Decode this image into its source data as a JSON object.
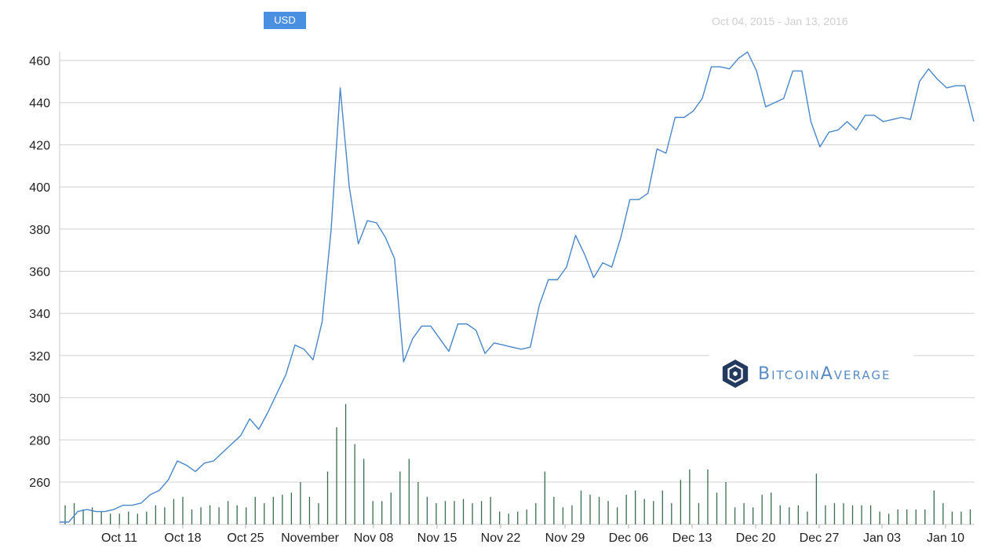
{
  "header": {
    "currency_button": "USD",
    "date_range": "Oct 04, 2015 - Jan 13, 2016"
  },
  "watermark": {
    "brand_text": "BitcoinAverage",
    "logo_icon": "bitcoinaverage-hexagon-logo-icon",
    "logo_color": "#233a5e"
  },
  "chart_data": {
    "type": "line",
    "ylim": [
      240,
      465
    ],
    "y_ticks": [
      460,
      440,
      420,
      400,
      380,
      360,
      340,
      320,
      300,
      280,
      260
    ],
    "x_ticks": [
      "Oct 11",
      "Oct 18",
      "Oct 25",
      "November",
      "Nov 08",
      "Nov 15",
      "Nov 22",
      "Nov 29",
      "Dec 06",
      "Dec 13",
      "Dec 20",
      "Dec 27",
      "Jan 03",
      "Jan 10"
    ],
    "x_start": "Oct 04, 2015",
    "x_end": "Jan 13, 2016",
    "grid": true,
    "line_color": "#4a86c8",
    "volume_color": "#3a6b4e",
    "price": [
      241,
      241,
      246,
      247,
      246,
      246,
      247,
      249,
      249,
      250,
      254,
      256,
      261,
      270,
      268,
      265,
      269,
      270,
      274,
      278,
      282,
      290,
      285,
      293,
      302,
      311,
      325,
      323,
      318,
      336,
      380,
      447,
      400,
      373,
      384,
      383,
      376,
      366,
      317,
      328,
      334,
      334,
      328,
      322,
      335,
      335,
      332,
      321,
      326,
      325,
      324,
      323,
      324,
      344,
      356,
      356,
      362,
      377,
      368,
      357,
      364,
      362,
      376,
      394,
      394,
      397,
      418,
      416,
      433,
      433,
      436,
      442,
      457,
      457,
      456,
      461,
      464,
      455,
      438,
      440,
      442,
      455,
      455,
      431,
      419,
      426,
      427,
      431,
      427,
      434,
      434,
      431,
      432,
      433,
      432,
      450,
      456,
      451,
      447,
      448,
      448,
      431
    ],
    "volume": [
      249,
      250,
      247,
      248,
      246,
      245,
      245,
      246,
      245,
      246,
      249,
      248,
      252,
      253,
      247,
      248,
      249,
      248,
      251,
      249,
      248,
      253,
      250,
      253,
      254,
      255,
      260,
      253,
      250,
      265,
      286,
      297,
      278,
      271,
      251,
      251,
      255,
      265,
      271,
      260,
      253,
      250,
      251,
      251,
      252,
      250,
      251,
      253,
      246,
      245,
      246,
      247,
      250,
      265,
      253,
      248,
      249,
      256,
      254,
      253,
      251,
      248,
      254,
      256,
      252,
      251,
      256,
      250,
      261,
      266,
      250,
      266,
      255,
      260,
      248,
      250,
      248,
      254,
      255,
      249,
      248,
      249,
      246,
      264,
      249,
      250,
      250,
      249,
      249,
      249,
      246,
      245,
      247,
      247,
      247,
      247,
      256,
      250,
      246,
      246,
      247,
      251
    ]
  }
}
